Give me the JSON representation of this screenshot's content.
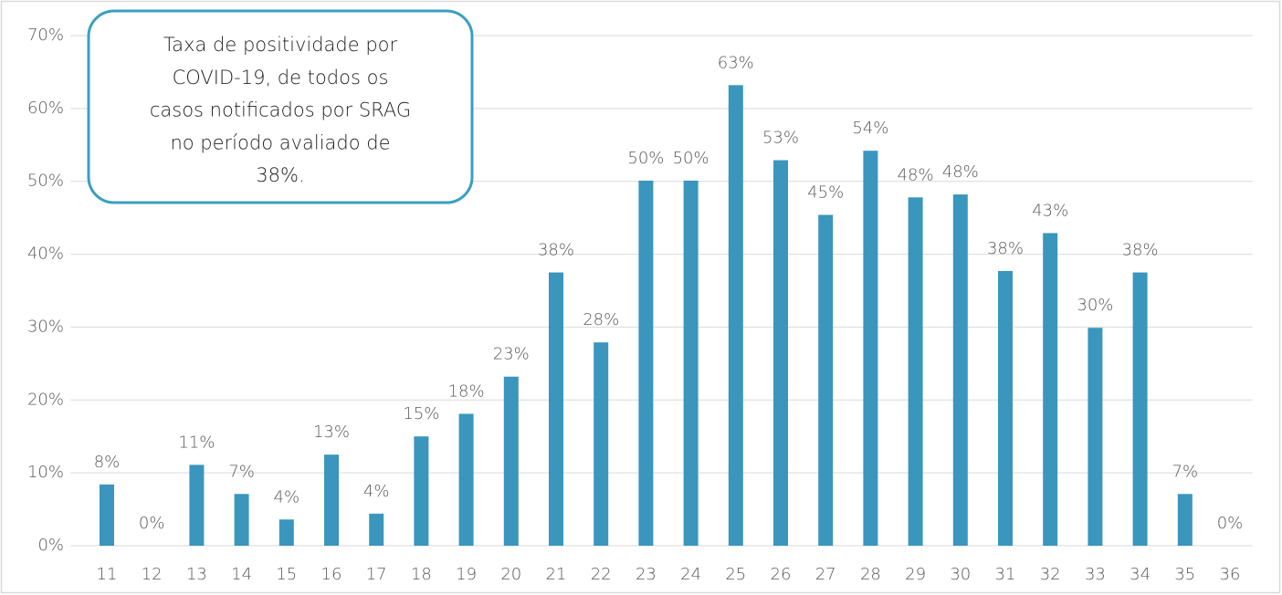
{
  "chart_data": {
    "type": "bar",
    "annotation": [
      "Taxa de positividade por",
      "COVID-19, de todos os",
      "casos notificados por SRAG",
      "no período avaliado de",
      "38%."
    ],
    "categories": [
      "11",
      "12",
      "13",
      "14",
      "15",
      "16",
      "17",
      "18",
      "19",
      "20",
      "21",
      "22",
      "23",
      "24",
      "25",
      "26",
      "27",
      "28",
      "29",
      "30",
      "31",
      "32",
      "33",
      "34",
      "35",
      "36"
    ],
    "values": [
      8.4,
      0,
      11.1,
      7.1,
      3.6,
      12.5,
      4.4,
      15.0,
      18.1,
      23.2,
      37.5,
      27.9,
      50.1,
      50.1,
      63.2,
      52.9,
      45.4,
      54.2,
      47.8,
      48.2,
      37.7,
      42.9,
      29.9,
      37.5,
      7.1,
      0
    ],
    "value_labels": [
      "8%",
      "0%",
      "11%",
      "7%",
      "4%",
      "13%",
      "4%",
      "15%",
      "18%",
      "23%",
      "38%",
      "28%",
      "50%",
      "50%",
      "63%",
      "53%",
      "45%",
      "54%",
      "48%",
      "48%",
      "38%",
      "43%",
      "30%",
      "38%",
      "7%",
      "0%"
    ],
    "color": "#3a96bd",
    "ylim": [
      0,
      70
    ],
    "yticks": [
      {
        "value": 0,
        "label": "0%"
      },
      {
        "value": 10,
        "label": "10%"
      },
      {
        "value": 20,
        "label": "20%"
      },
      {
        "value": 30,
        "label": "30%"
      },
      {
        "value": 40,
        "label": "40%"
      },
      {
        "value": 50,
        "label": "50%"
      },
      {
        "value": 60,
        "label": "60%"
      },
      {
        "value": 70,
        "label": "70%"
      }
    ],
    "grid": true
  }
}
